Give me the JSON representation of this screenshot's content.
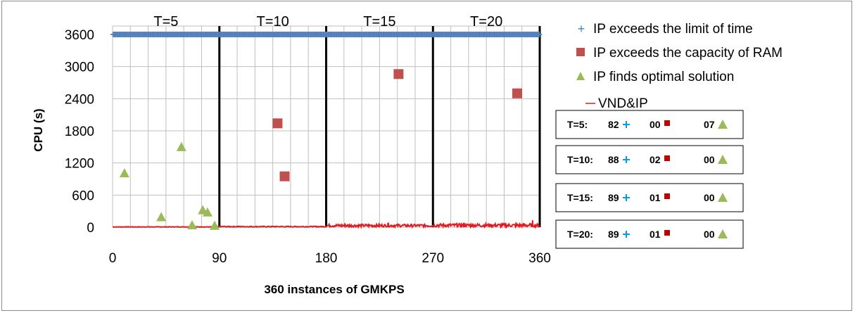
{
  "chart_data": {
    "type": "scatter",
    "ylabel": "CPU (s)",
    "xlabel": "360  instances of GMKPS",
    "xlim": [
      0,
      360
    ],
    "ylim": [
      0,
      3600
    ],
    "x_ticks": [
      "0",
      "90",
      "180",
      "270",
      "360"
    ],
    "y_ticks": [
      "0",
      "600",
      "1200",
      "1800",
      "2400",
      "3000",
      "3600"
    ],
    "grid": true,
    "segment_labels": [
      "T=5",
      "T=10",
      "T=15",
      "T=20"
    ],
    "segment_bounds": [
      90,
      180,
      270
    ],
    "legend_position": "right",
    "colors": {
      "time_limit": "#4f81bd",
      "ram": "#c0504d",
      "optimal": "#9bbb59",
      "vnd_ip": "#e41a1c",
      "separator": "#000000"
    },
    "series": [
      {
        "name": "IP exceeds the limit of time",
        "marker": "plus",
        "y_constant": 3600,
        "x_range": [
          0,
          360
        ],
        "count": 348
      },
      {
        "name": "IP exceeds the capacity of RAM",
        "marker": "square",
        "points": [
          [
            139,
            1940
          ],
          [
            145,
            950
          ],
          [
            241,
            2860
          ],
          [
            341,
            2500
          ]
        ]
      },
      {
        "name": "IP finds optimal solution",
        "marker": "triangle",
        "points": [
          [
            10,
            1010
          ],
          [
            41,
            190
          ],
          [
            58,
            1500
          ],
          [
            67,
            40
          ],
          [
            76,
            320
          ],
          [
            80,
            280
          ],
          [
            86,
            30
          ]
        ]
      },
      {
        "name": "VND&IP",
        "marker": "line",
        "segment_levels": [
          [
            0,
            90,
            5,
            4
          ],
          [
            90,
            180,
            10,
            8
          ],
          [
            180,
            270,
            30,
            25
          ],
          [
            270,
            360,
            35,
            30
          ]
        ]
      }
    ],
    "summary_boxes": [
      {
        "label": "T=5:",
        "time": "82",
        "ram": "00",
        "opt": "07"
      },
      {
        "label": "T=10:",
        "time": "88",
        "ram": "02",
        "opt": "00"
      },
      {
        "label": "T=15:",
        "time": "89",
        "ram": "01",
        "opt": "00"
      },
      {
        "label": "T=20:",
        "time": "89",
        "ram": "01",
        "opt": "00"
      }
    ]
  }
}
